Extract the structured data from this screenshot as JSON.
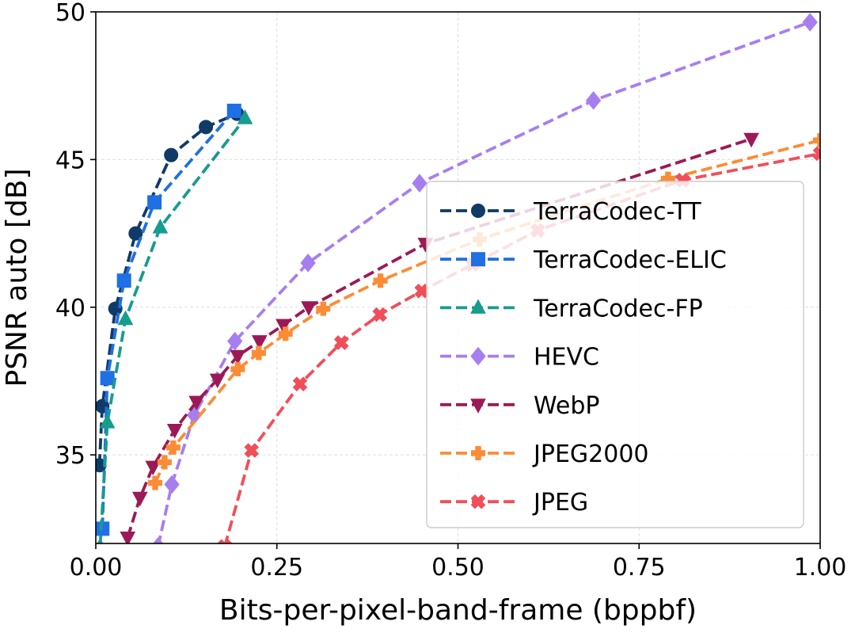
{
  "chart_data": {
    "type": "line",
    "title": "",
    "xlabel": "Bits-per-pixel-band-frame (bppbf)",
    "ylabel": "PSNR auto [dB]",
    "xlim": [
      0.0,
      1.0
    ],
    "ylim": [
      32.0,
      50.0
    ],
    "xticks": [
      0.0,
      0.25,
      0.5,
      0.75,
      1.0
    ],
    "xtick_labels": [
      "0.00",
      "0.25",
      "0.50",
      "0.75",
      "1.00"
    ],
    "yticks": [
      35,
      40,
      45,
      50
    ],
    "ytick_labels": [
      "35",
      "40",
      "45",
      "50"
    ],
    "grid": true,
    "legend_position": "lower-right",
    "series": [
      {
        "name": "TerraCodec-TT",
        "color": "#0f3b66",
        "marker": "circle",
        "points": [
          [
            0.005,
            34.65
          ],
          [
            0.009,
            36.65
          ],
          [
            0.027,
            39.95
          ],
          [
            0.055,
            42.5
          ],
          [
            0.104,
            45.15
          ],
          [
            0.152,
            46.1
          ],
          [
            0.195,
            46.55
          ]
        ]
      },
      {
        "name": "TerraCodec-ELIC",
        "color": "#1f6fe5",
        "marker": "square",
        "points": [
          [
            0.009,
            32.5
          ],
          [
            0.016,
            37.6
          ],
          [
            0.039,
            40.9
          ],
          [
            0.081,
            43.55
          ],
          [
            0.191,
            46.65
          ]
        ]
      },
      {
        "name": "TerraCodec-FP",
        "color": "#179c8e",
        "marker": "triangle-up",
        "points": [
          [
            0.006,
            31.9
          ],
          [
            0.016,
            36.1
          ],
          [
            0.041,
            39.6
          ],
          [
            0.089,
            42.7
          ],
          [
            0.206,
            46.4
          ]
        ]
      },
      {
        "name": "HEVC",
        "color": "#a77ef0",
        "marker": "diamond",
        "points": [
          [
            0.086,
            31.9
          ],
          [
            0.105,
            34.0
          ],
          [
            0.136,
            36.35
          ],
          [
            0.192,
            38.85
          ],
          [
            0.293,
            41.5
          ],
          [
            0.447,
            44.2
          ],
          [
            0.687,
            47.0
          ],
          [
            0.986,
            49.65
          ]
        ]
      },
      {
        "name": "WebP",
        "color": "#9b1a55",
        "marker": "triangle-down",
        "points": [
          [
            0.044,
            32.2
          ],
          [
            0.061,
            33.55
          ],
          [
            0.079,
            34.6
          ],
          [
            0.109,
            35.85
          ],
          [
            0.139,
            36.8
          ],
          [
            0.168,
            37.55
          ],
          [
            0.196,
            38.35
          ],
          [
            0.226,
            38.85
          ],
          [
            0.259,
            39.4
          ],
          [
            0.294,
            40.0
          ],
          [
            0.455,
            42.15
          ],
          [
            0.905,
            45.7
          ]
        ]
      },
      {
        "name": "JPEG2000",
        "color": "#fb8c35",
        "marker": "plus",
        "points": [
          [
            0.082,
            34.05
          ],
          [
            0.095,
            34.75
          ],
          [
            0.107,
            35.25
          ],
          [
            0.196,
            37.9
          ],
          [
            0.225,
            38.45
          ],
          [
            0.262,
            39.1
          ],
          [
            0.314,
            39.95
          ],
          [
            0.393,
            40.9
          ],
          [
            0.53,
            42.3
          ],
          [
            0.79,
            44.35
          ],
          [
            1.0,
            45.65
          ]
        ]
      },
      {
        "name": "JPEG",
        "color": "#f14e5a",
        "marker": "x",
        "points": [
          [
            0.178,
            31.9
          ],
          [
            0.215,
            35.15
          ],
          [
            0.282,
            37.4
          ],
          [
            0.339,
            38.8
          ],
          [
            0.392,
            39.75
          ],
          [
            0.45,
            40.55
          ],
          [
            0.52,
            41.45
          ],
          [
            0.61,
            42.6
          ],
          [
            0.81,
            44.3
          ],
          [
            1.0,
            45.2
          ]
        ]
      }
    ]
  }
}
